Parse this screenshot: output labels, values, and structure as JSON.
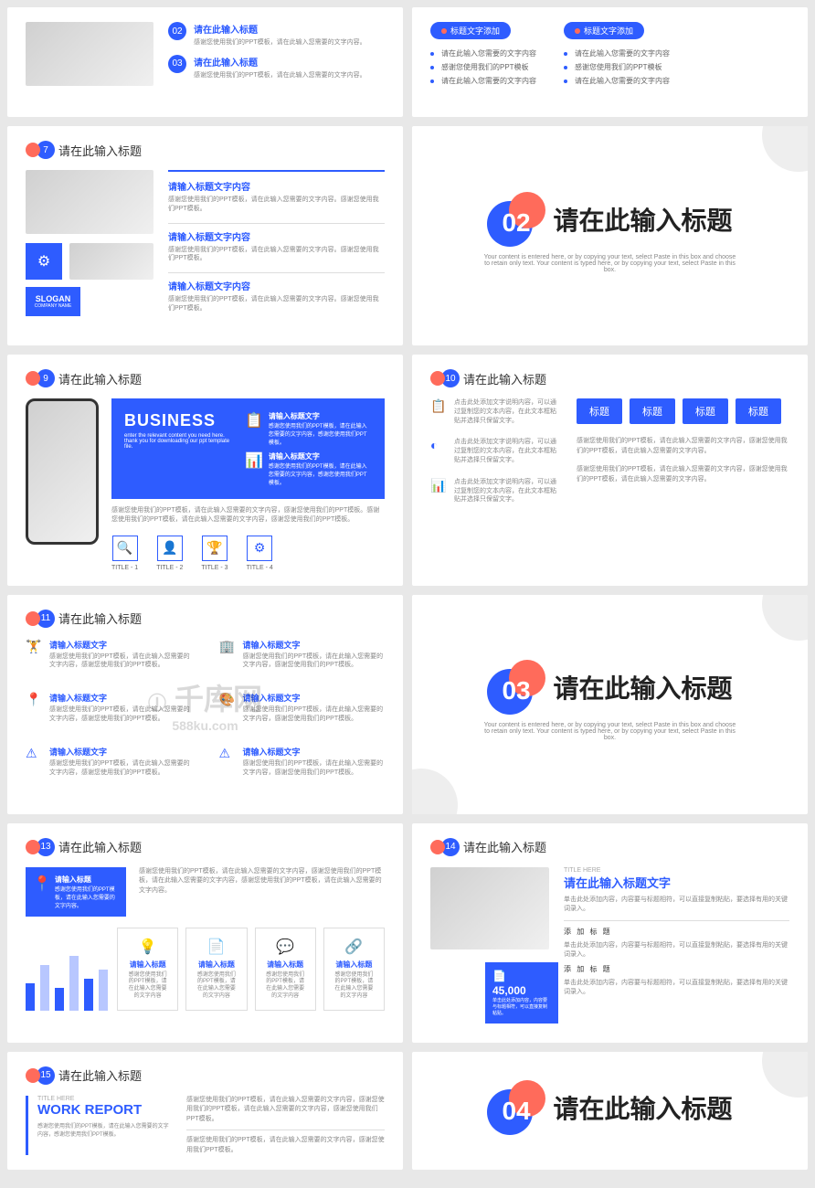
{
  "common": {
    "slide_title": "请在此输入标题",
    "lorem_short": "请在此输入标题",
    "lorem_line": "感谢您使用我们的PPT模板，请在此输入您需要的文字内容。",
    "lorem_line2": "感谢您使用我们PPT模板。",
    "section_title": "请在此输入标题",
    "section_sub": "Your content is entered here, or by copying your text, select Paste in this box and choose to retain only text. Your content is typed here, or by copying your text, select Paste in this box."
  },
  "s1": {
    "num2": "02",
    "num3": "03",
    "t1": "请在此输入标题",
    "t2": "请在此输入标题",
    "p": "感谢您使用我们的PPT模板，请在此输入您需要的文字内容。"
  },
  "s2": {
    "pill": "标题文字添加",
    "b1": "请在此输入您需要的文字内容",
    "b2": "感谢您使用我们的PPT模板",
    "b3": "请在此输入您需要的文字内容"
  },
  "s3": {
    "num": "7",
    "h": "请输入标题文字内容",
    "p": "感谢您使用我们的PPT模板，请在此输入您需要的文字内容。感谢您使用我们PPT模板。",
    "slogan": "SLOGAN",
    "company": "COMPANY NAME"
  },
  "sec2": {
    "num": "02"
  },
  "s5": {
    "num": "9",
    "business": "BUSINESS",
    "sub": "enter the relevant content you need here. thank you for downloading our ppt template file.",
    "h1": "请输入标题文字",
    "h2": "请输入标题文字",
    "p1": "感谢您使用我们的PPT模板，请在此输入您需要的文字内容，感谢您使用我们PPT模板。",
    "desc": "感谢您使用我们的PPT模板，请在此输入您需要的文字内容，感谢您使用我们的PPT模板。感谢您使用我们的PPT模板，请在此输入您需要的文字内容，感谢您使用我们的PPT模板。",
    "t1": "TITLE - 1",
    "t2": "TITLE - 2",
    "t3": "TITLE - 3",
    "t4": "TITLE - 4"
  },
  "s6": {
    "num": "10",
    "p1": "点击此处添加文字说明内容，可以通过复制您的文本内容，在此文本框粘贴并选择只保留文字。",
    "tag": "标题",
    "desc": "感谢您使用我们的PPT模板，请在此输入您需要的文字内容，感谢您使用我们的PPT模板，请在此输入您需要的文字内容。"
  },
  "s7": {
    "num": "11",
    "h": "请输入标题文字",
    "p": "感谢您使用我们的PPT模板，请在此输入您需要的文字内容，感谢您使用我们的PPT模板。"
  },
  "sec3": {
    "num": "03"
  },
  "s9": {
    "num": "13",
    "h": "请输入标题",
    "hp": "感谢您使用我们的PPT模板，请在此输入您需要的文字内容。",
    "desc": "感谢您使用我们的PPT模板，请在此输入您需要的文字内容，感谢您使用我们的PPT模板，请在此输入您需要的文字内容，感谢您使用我们的PPT模板，请在此输入您需要的文字内容。",
    "card_h": "请输入标题",
    "card_p": "感谢您使用我们的PPT模板，请在此输入您需要的文字内容",
    "bars": [
      30,
      50,
      25,
      60,
      35,
      45
    ]
  },
  "s10": {
    "num": "14",
    "title_here": "TITLE HERE",
    "h": "请在此输入标题文字",
    "p": "单击此处添加内容，内容要与标题相符，可以直接复制粘贴，要选择有用的关键词录入。",
    "add": "添 加 标 题",
    "val": "45,000",
    "vp": "单击此处添加内容，内容要与标题相符，可以直接复制粘贴。"
  },
  "s11": {
    "num": "15",
    "title_here": "TITLE HERE",
    "h": "WORK REPORT",
    "p": "感谢您使用我们的PPT模板，请在此输入您需要的文字内容，感谢您使用我们PPT模板。",
    "desc": "感谢您使用我们的PPT模板，请在此输入您需要的文字内容，感谢您使用我们的PPT模板，请在此输入您需要的文字内容，感谢您使用我们PPT模板。"
  },
  "sec4": {
    "num": "04"
  },
  "watermark": {
    "main": "千库网",
    "sub": "588ku.com"
  }
}
